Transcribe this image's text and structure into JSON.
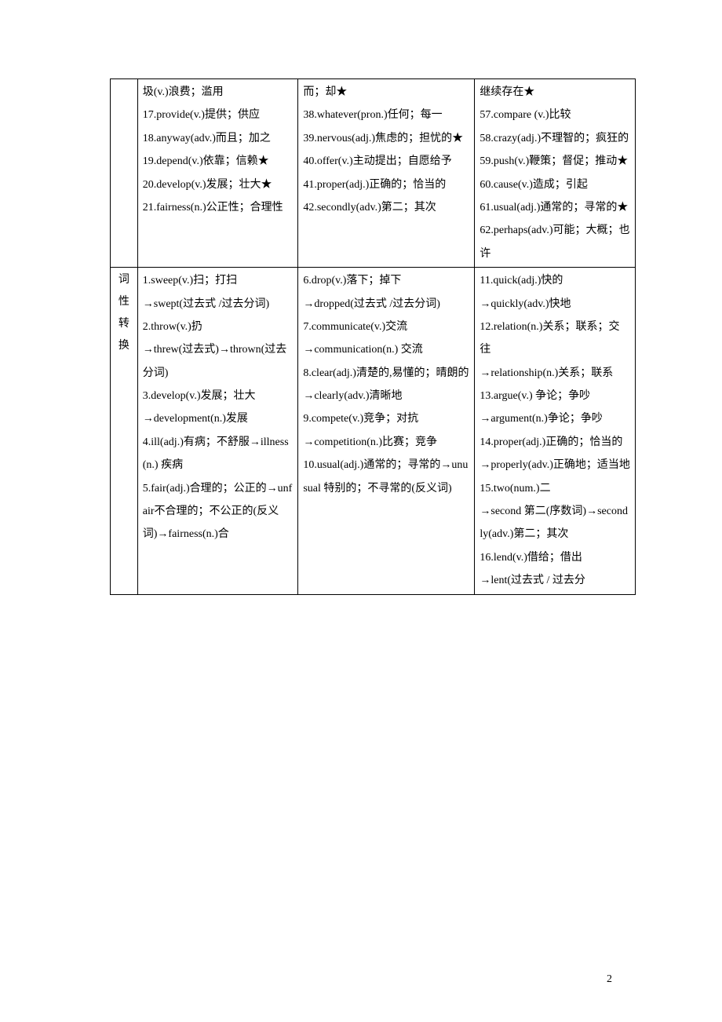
{
  "row1": {
    "label": "",
    "col1": "圾(v.)浪费；滥用\n17.provide(v.)提供；供应\n18.anyway(adv.)而且；加之\n19.depend(v.)依靠；信赖★\n20.develop(v.)发展；壮大★\n21.fairness(n.)公正性；合理性",
    "col2": "而；却★\n38.whatever(pron.)任何；每一\n39.nervous(adj.)焦虑的；担忧的★\n40.offer(v.)主动提出；自愿给予\n41.proper(adj.)正确的；恰当的\n42.secondly(adv.)第二；其次",
    "col3": "继续存在★\n57.compare (v.)比较\n58.crazy(adj.)不理智的；疯狂的\n59.push(v.)鞭策；督促；推动★\n60.cause(v.)造成；引起\n61.usual(adj.)通常的；寻常的★\n62.perhaps(adv.)可能；大概；也许"
  },
  "row2": {
    "label": "词性转换",
    "col1": "1.sweep(v.)扫；打扫\n→swept(过去式 /过去分词)\n2.throw(v.)扔\n→threw(过去式)→thrown(过去分词)\n3.develop(v.)发展；壮大\n→development(n.)发展\n4.ill(adj.)有病；不舒服→illness(n.) 疾病\n5.fair(adj.)合理的；公正的→unfair不合理的；不公正的(反义词)→fairness(n.)合",
    "col2": "6.drop(v.)落下；掉下\n→dropped(过去式 /过去分词)\n7.communicate(v.)交流\n→communication(n.) 交流\n8.clear(adj.)清楚的,易懂的；晴朗的\n→clearly(adv.)清晰地\n9.compete(v.)竞争；对抗\n→competition(n.)比赛；竞争\n10.usual(adj.)通常的；寻常的→unusual 特别的；不寻常的(反义词)",
    "col3": "11.quick(adj.)快的\n→quickly(adv.)快地\n12.relation(n.)关系；联系；交往\n→relationship(n.)关系；联系\n13.argue(v.) 争论；争吵\n→argument(n.)争论；争吵\n14.proper(adj.)正确的；恰当的→properly(adv.)正确地；适当地\n15.two(num.)二\n→second 第二(序数词)→secondly(adv.)第二；其次\n16.lend(v.)借给；借出\n→lent(过去式 / 过去分"
  },
  "pagenum": "2"
}
